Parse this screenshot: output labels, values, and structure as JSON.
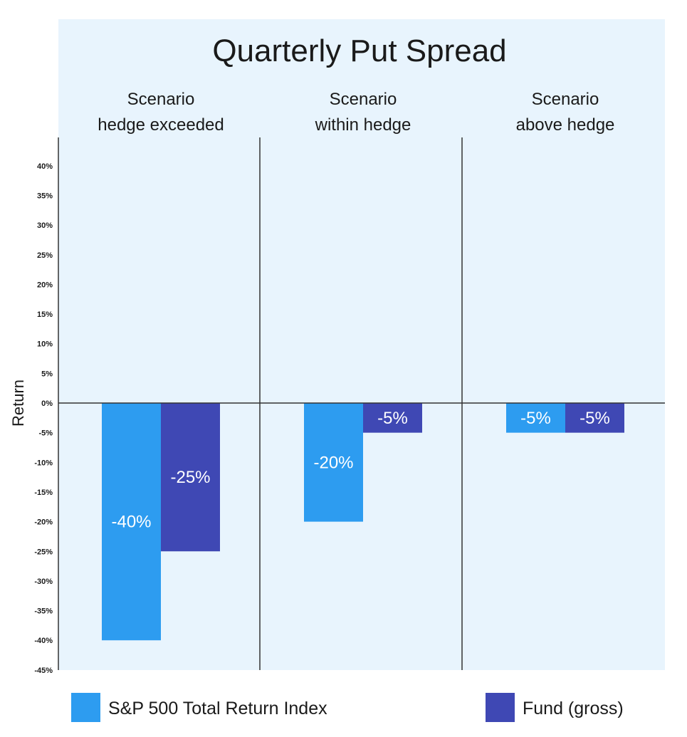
{
  "chart_data": {
    "type": "bar",
    "title": "Quarterly Put Spread",
    "ylabel": "Return",
    "ylim": [
      -45,
      40
    ],
    "yticks": [
      40,
      35,
      30,
      25,
      20,
      15,
      10,
      5,
      0,
      -5,
      -10,
      -15,
      -20,
      -25,
      -30,
      -35,
      -40,
      -45
    ],
    "ytick_labels": [
      "40%",
      "35%",
      "30%",
      "25%",
      "20%",
      "15%",
      "10%",
      "5%",
      "0%",
      "-5%",
      "-10%",
      "-15%",
      "-20%",
      "-25%",
      "-30%",
      "-35%",
      "-40%",
      "-45%"
    ],
    "categories": [
      {
        "line1": "Scenario",
        "line2": "hedge exceeded"
      },
      {
        "line1": "Scenario",
        "line2": "within hedge"
      },
      {
        "line1": "Scenario",
        "line2": "above hedge"
      }
    ],
    "series": [
      {
        "name": "S&P 500 Total Return Index",
        "color": "#2d9cf0",
        "values": [
          -40,
          -20,
          -5
        ],
        "labels": [
          "-40%",
          "-20%",
          "-5%"
        ]
      },
      {
        "name": "Fund (gross)",
        "color": "#3f48b4",
        "values": [
          -25,
          -5,
          -5
        ],
        "labels": [
          "-25%",
          "-5%",
          "-5%"
        ]
      }
    ],
    "grid": false,
    "legend": "bottom",
    "background_color": "#e8f4fd"
  }
}
